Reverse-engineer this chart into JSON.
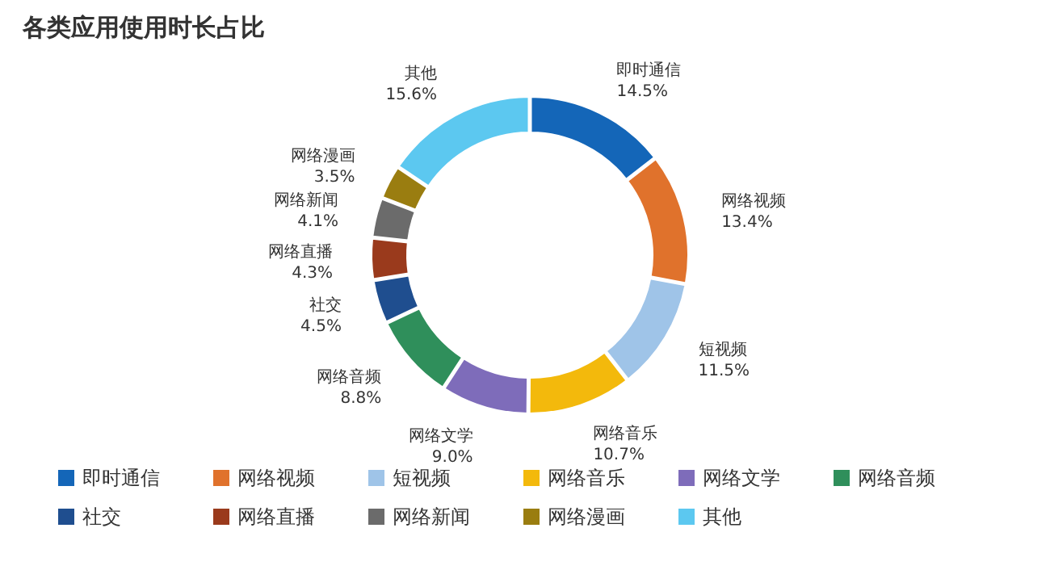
{
  "chart_data": {
    "type": "donut",
    "title": "各类应用使用时长占比",
    "categories": [
      "即时通信",
      "网络视频",
      "短视频",
      "网络音乐",
      "网络文学",
      "网络音频",
      "社交",
      "网络直播",
      "网络新闻",
      "网络漫画",
      "其他"
    ],
    "values": [
      14.5,
      13.4,
      11.5,
      10.7,
      9.0,
      8.8,
      4.5,
      4.3,
      4.1,
      3.5,
      15.6
    ],
    "value_labels": [
      "14.5%",
      "13.4%",
      "11.5%",
      "10.7%",
      "9.0%",
      "8.8%",
      "4.5%",
      "4.3%",
      "4.1%",
      "3.5%",
      "15.6%"
    ],
    "colors": [
      "#1466b8",
      "#e0722c",
      "#9fc4e8",
      "#f3b90c",
      "#7e6cba",
      "#2f8f5b",
      "#1f4e8f",
      "#9a3a1c",
      "#6b6b6b",
      "#9a7d10",
      "#5cc8f0"
    ],
    "legend": "bottom"
  }
}
